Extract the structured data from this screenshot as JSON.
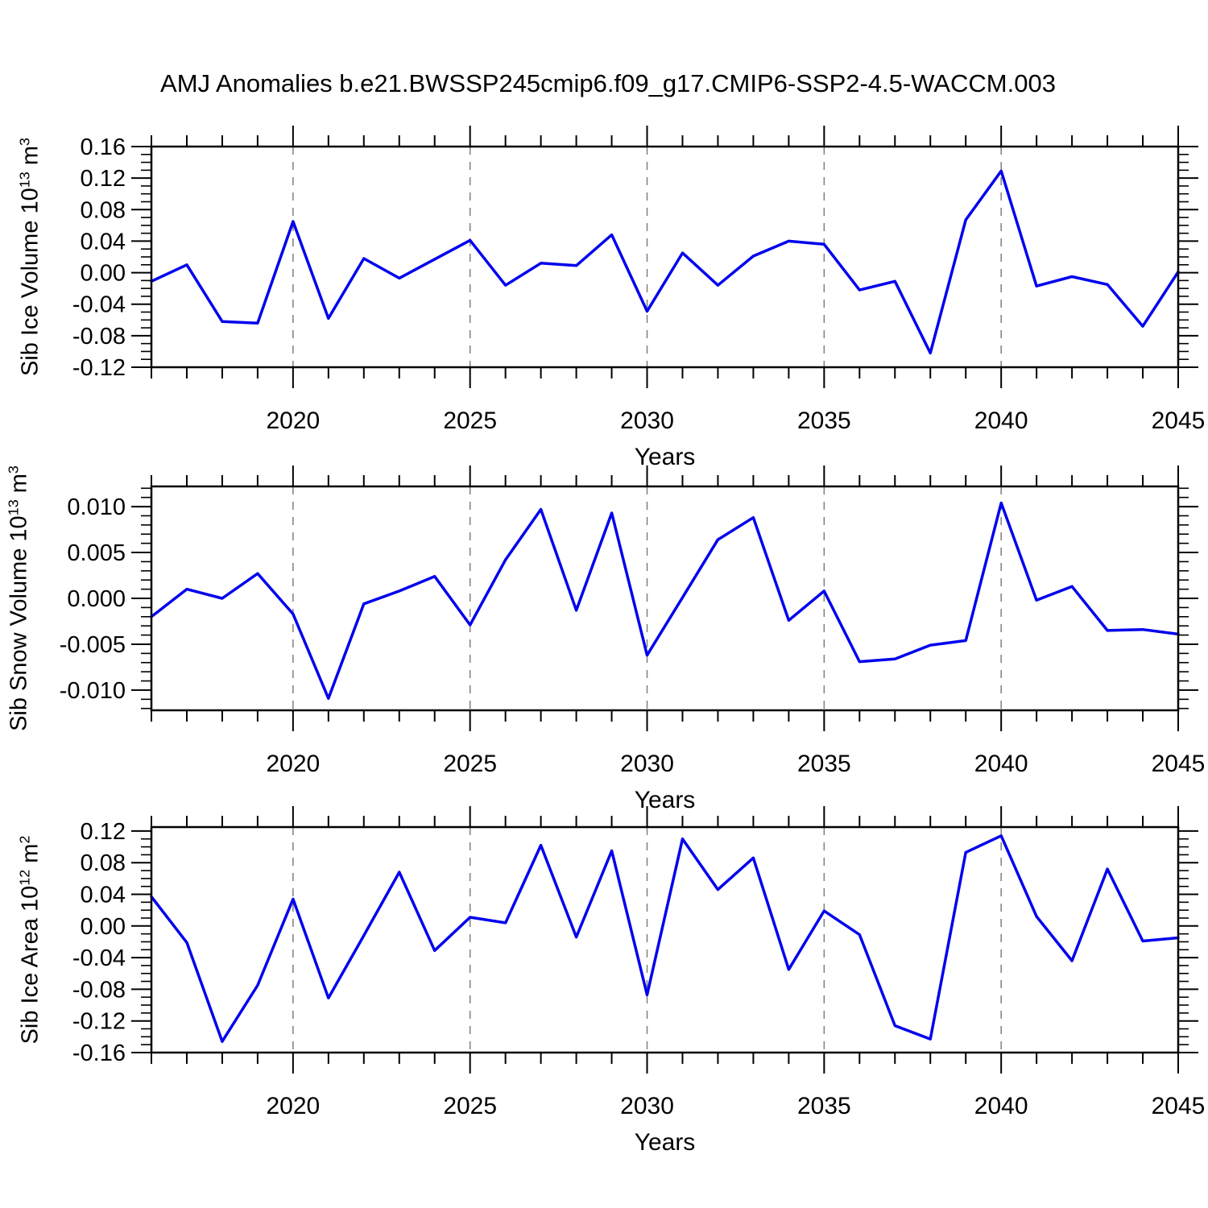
{
  "title": "AMJ Anomalies b.e21.BWSSP245cmip6.f09_g17.CMIP6-SSP2-4.5-WACCM.003",
  "colors": {
    "line": "#0000EE",
    "gridline": "#7F7F7F",
    "axis": "#000000",
    "background": "#FFFFFF",
    "text": "#000000"
  },
  "chart_data": [
    {
      "type": "line",
      "title": "Sib Ice Volume anomalies",
      "ylabel": "Sib Ice Volume 10^13 m^3",
      "ylabel_parts": {
        "prefix": "Sib Ice Volume 10",
        "exp": "13",
        "unit": " m",
        "unit_exp": "3"
      },
      "xlabel": "Years",
      "xlim": [
        2016,
        2045
      ],
      "ylim": [
        -0.12,
        0.16
      ],
      "grid": "dashed-vertical-at-major-xticks",
      "legend": "none",
      "xticks": [
        2020,
        2025,
        2030,
        2035,
        2040,
        2045
      ],
      "xtick_labels": [
        "2020",
        "2025",
        "2030",
        "2035",
        "2040",
        "2045"
      ],
      "x_minor_step": 1,
      "ytick_values": [
        0.16,
        0.12,
        0.08,
        0.04,
        0.0,
        -0.04,
        -0.08,
        -0.12
      ],
      "ytick_labels": [
        "0.16",
        "0.12",
        "0.08",
        "0.04",
        "0.00",
        "-0.04",
        "-0.08",
        "-0.12"
      ],
      "y_minor_step": 0.01,
      "x": [
        2016,
        2017,
        2018,
        2019,
        2020,
        2021,
        2022,
        2023,
        2024,
        2025,
        2026,
        2027,
        2028,
        2029,
        2030,
        2031,
        2032,
        2033,
        2034,
        2035,
        2036,
        2037,
        2038,
        2039,
        2040,
        2041,
        2042,
        2043,
        2044,
        2045
      ],
      "values": [
        -0.011,
        0.01,
        -0.062,
        -0.064,
        0.065,
        -0.058,
        0.018,
        -0.007,
        0.017,
        0.041,
        -0.016,
        0.012,
        0.009,
        0.048,
        -0.049,
        0.025,
        -0.016,
        0.021,
        0.04,
        0.036,
        -0.022,
        -0.011,
        -0.102,
        0.067,
        0.129,
        -0.017,
        -0.005,
        -0.015,
        -0.068,
        0.001
      ]
    },
    {
      "type": "line",
      "title": "Sib Snow Volume anomalies",
      "ylabel": "Sib Snow Volume 10^13 m^3",
      "ylabel_parts": {
        "prefix": "Sib Snow Volume 10",
        "exp": "13",
        "unit": " m",
        "unit_exp": "3"
      },
      "xlabel": "Years",
      "xlim": [
        2016,
        2045
      ],
      "ylim": [
        -0.0122,
        0.0122
      ],
      "grid": "dashed-vertical-at-major-xticks",
      "legend": "none",
      "xticks": [
        2020,
        2025,
        2030,
        2035,
        2040,
        2045
      ],
      "xtick_labels": [
        "2020",
        "2025",
        "2030",
        "2035",
        "2040",
        "2045"
      ],
      "x_minor_step": 1,
      "ytick_values": [
        0.01,
        0.005,
        0.0,
        -0.005,
        -0.01
      ],
      "ytick_labels": [
        "0.010",
        "0.005",
        "0.000",
        "-0.005",
        "-0.010"
      ],
      "y_minor_step": 0.001,
      "x": [
        2016,
        2017,
        2018,
        2019,
        2020,
        2021,
        2022,
        2023,
        2024,
        2025,
        2026,
        2027,
        2028,
        2029,
        2030,
        2031,
        2032,
        2033,
        2034,
        2035,
        2036,
        2037,
        2038,
        2039,
        2040,
        2041,
        2042,
        2043,
        2044,
        2045
      ],
      "values": [
        -0.002,
        0.001,
        0.0,
        0.0027,
        -0.0017,
        -0.0109,
        -0.0006,
        0.0008,
        0.0024,
        -0.0029,
        0.0042,
        0.0097,
        -0.0013,
        0.0093,
        -0.0062,
        0.0001,
        0.0064,
        0.0088,
        -0.0024,
        0.0008,
        -0.0069,
        -0.0066,
        -0.0051,
        -0.0046,
        0.0104,
        -0.0002,
        0.0013,
        -0.0035,
        -0.0034,
        -0.0039
      ]
    },
    {
      "type": "line",
      "title": "Sib Ice Area anomalies",
      "ylabel": "Sib Ice Area 10^12 m^2",
      "ylabel_parts": {
        "prefix": "Sib Ice Area 10",
        "exp": "12",
        "unit": " m",
        "unit_exp": "2"
      },
      "xlabel": "Years",
      "xlim": [
        2016,
        2045
      ],
      "ylim": [
        -0.16,
        0.125
      ],
      "grid": "dashed-vertical-at-major-xticks",
      "legend": "none",
      "xticks": [
        2020,
        2025,
        2030,
        2035,
        2040,
        2045
      ],
      "xtick_labels": [
        "2020",
        "2025",
        "2030",
        "2035",
        "2040",
        "2045"
      ],
      "x_minor_step": 1,
      "ytick_values": [
        0.12,
        0.08,
        0.04,
        0.0,
        -0.04,
        -0.08,
        -0.12,
        -0.16
      ],
      "ytick_labels": [
        "0.12",
        "0.08",
        "0.04",
        "0.00",
        "-0.04",
        "-0.08",
        "-0.12",
        "-0.16"
      ],
      "y_minor_step": 0.01,
      "x": [
        2016,
        2017,
        2018,
        2019,
        2020,
        2021,
        2022,
        2023,
        2024,
        2025,
        2026,
        2027,
        2028,
        2029,
        2030,
        2031,
        2032,
        2033,
        2034,
        2035,
        2036,
        2037,
        2038,
        2039,
        2040,
        2041,
        2042,
        2043,
        2044,
        2045
      ],
      "values": [
        0.037,
        -0.021,
        -0.146,
        -0.075,
        0.034,
        -0.091,
        -0.012,
        0.068,
        -0.031,
        0.011,
        0.004,
        0.102,
        -0.014,
        0.095,
        -0.087,
        0.11,
        0.046,
        0.086,
        -0.055,
        0.019,
        -0.011,
        -0.126,
        -0.143,
        0.093,
        0.114,
        0.012,
        -0.044,
        0.072,
        -0.019,
        -0.015
      ]
    }
  ]
}
